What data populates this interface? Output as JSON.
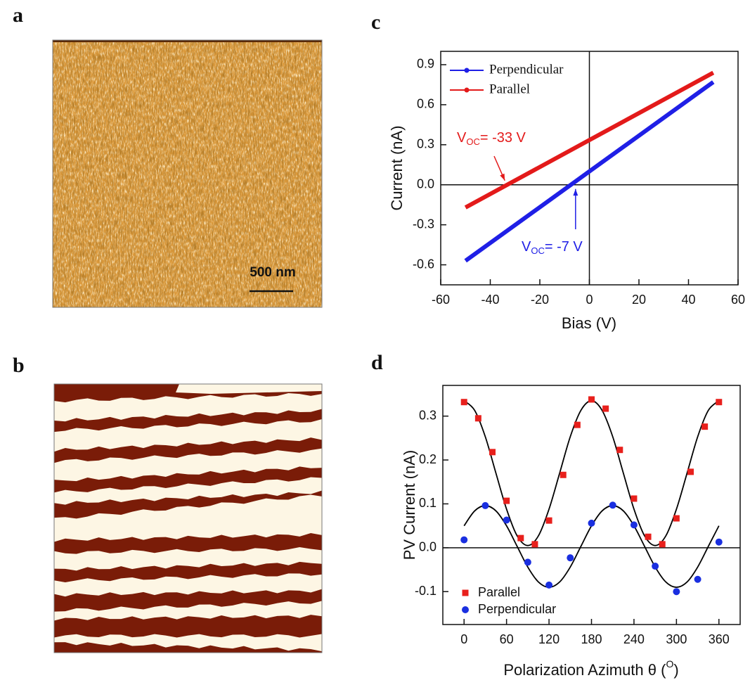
{
  "panels": [
    {
      "label": "a",
      "scale_bar": "500 nm"
    },
    {
      "label": "b"
    }
  ],
  "chart_data": [
    {
      "type": "line",
      "panel_label": "c",
      "x_label": "Bias (V)",
      "y_label": "Current (nA)",
      "x": [
        -50,
        0,
        50
      ],
      "series": [
        {
          "name": "Perpendicular",
          "color": "#1f1fe6",
          "values": [
            -0.57,
            0.1,
            0.77
          ]
        },
        {
          "name": "Parallel",
          "color": "#e31a1a",
          "values": [
            -0.17,
            0.335,
            0.84
          ]
        }
      ],
      "xlim": [
        -60,
        60
      ],
      "xticks": [
        -60,
        -40,
        -20,
        0,
        20,
        40,
        60
      ],
      "ylim": [
        -0.75,
        1.0
      ],
      "yticks": [
        -0.6,
        -0.3,
        {
          "value": 0,
          "label": "0.0"
        },
        0.3,
        0.6,
        0.9
      ],
      "zero_lines": true,
      "legend": "top-left",
      "annotations": [
        {
          "prefix": "V",
          "subscript": "OC",
          "text": "= -33 V",
          "target": [
            -33,
            0
          ],
          "color": "#e31a1a"
        },
        {
          "prefix": "V",
          "subscript": "OC",
          "text": "= -7 V",
          "target": [
            -7,
            0
          ],
          "color": "#1f1fe6"
        }
      ]
    },
    {
      "type": "scatter",
      "panel_label": "d",
      "x_label": "Polarization Azimuth θ (",
      "x_label_sup": "O",
      "x_label_end": ")",
      "y_label": "PV Current (nA)",
      "series": [
        {
          "name": "Parallel",
          "color": "#e8201c",
          "marker": "square",
          "x": [
            0,
            20,
            40,
            60,
            80,
            100,
            120,
            140,
            160,
            180,
            200,
            220,
            240,
            260,
            280,
            300,
            320,
            340,
            360
          ],
          "values": [
            0.332,
            0.295,
            0.218,
            0.107,
            0.022,
            0.008,
            0.062,
            0.166,
            0.28,
            0.338,
            0.317,
            0.223,
            0.112,
            0.025,
            0.008,
            0.067,
            0.173,
            0.276,
            0.332
          ]
        },
        {
          "name": "Perpendicular",
          "color": "#1a2fe0",
          "marker": "circle",
          "x": [
            0,
            30,
            60,
            90,
            120,
            150,
            180,
            210,
            240,
            270,
            300,
            330,
            360
          ],
          "values": [
            0.018,
            0.096,
            0.063,
            -0.033,
            -0.085,
            -0.023,
            0.056,
            0.097,
            0.052,
            -0.042,
            -0.1,
            -0.072,
            0.013
          ]
        }
      ],
      "fits": [
        {
          "color": "#000000",
          "x": [
            0,
            15,
            30,
            45,
            60,
            75,
            90,
            105,
            120,
            135,
            150,
            165,
            180,
            195,
            210,
            225,
            240,
            255,
            270,
            285,
            300,
            315,
            330,
            345,
            360
          ],
          "values": [
            0.335,
            0.313,
            0.253,
            0.17,
            0.088,
            0.027,
            0.005,
            0.027,
            0.088,
            0.17,
            0.253,
            0.313,
            0.335,
            0.313,
            0.253,
            0.17,
            0.088,
            0.027,
            0.005,
            0.027,
            0.088,
            0.17,
            0.253,
            0.313,
            0.335
          ]
        },
        {
          "color": "#000000",
          "x": [
            0,
            15,
            30,
            45,
            60,
            75,
            90,
            105,
            120,
            135,
            150,
            165,
            180,
            195,
            210,
            225,
            240,
            255,
            270,
            285,
            300,
            315,
            330,
            345,
            360
          ],
          "values": [
            0.05,
            0.084,
            0.096,
            0.084,
            0.05,
            0.003,
            -0.044,
            -0.078,
            -0.09,
            -0.078,
            -0.044,
            0.003,
            0.05,
            0.084,
            0.096,
            0.084,
            0.05,
            0.003,
            -0.044,
            -0.078,
            -0.09,
            -0.078,
            -0.044,
            0.003,
            0.05
          ]
        }
      ],
      "xlim": [
        -30,
        390
      ],
      "xticks": [
        0,
        60,
        120,
        180,
        240,
        300,
        360
      ],
      "ylim": [
        -0.175,
        0.37
      ],
      "yticks": [
        -0.1,
        {
          "value": 0,
          "label": "0.0"
        },
        0.1,
        0.2,
        0.3
      ],
      "zero_lines": true,
      "legend": "bottom-left"
    }
  ]
}
